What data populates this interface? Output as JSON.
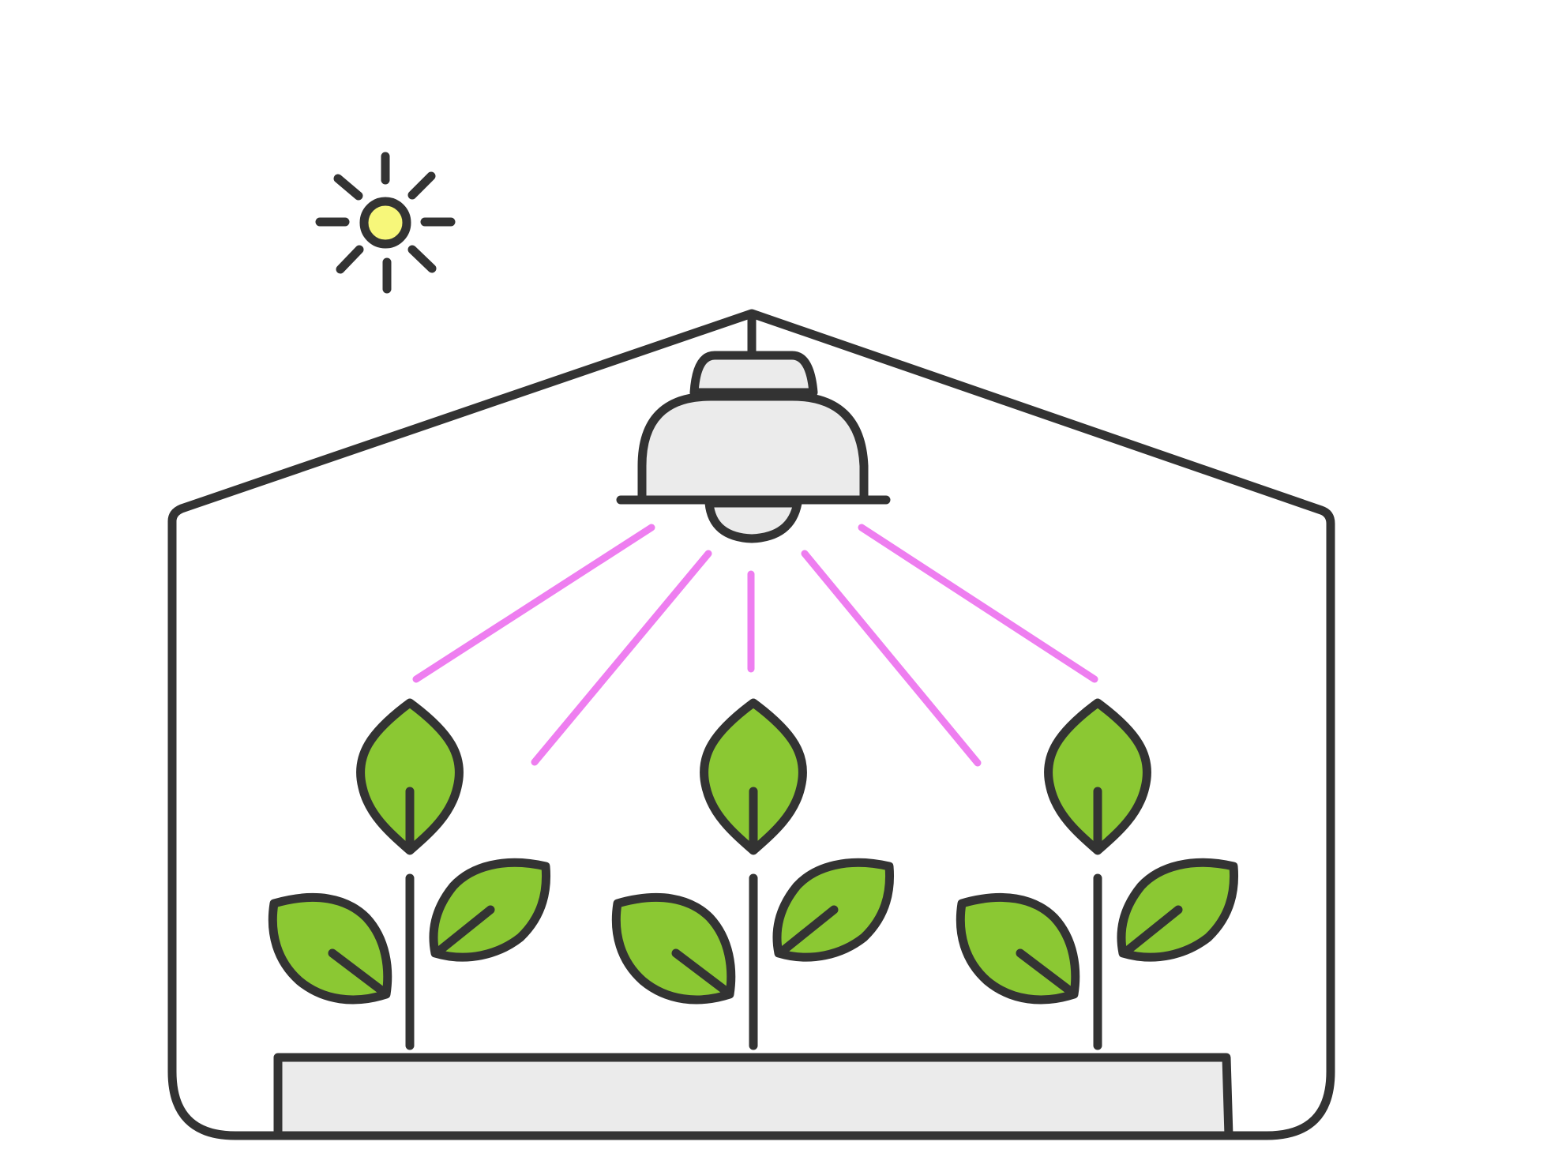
{
  "illustration": {
    "subject": "greenhouse-grow-light",
    "icons": [
      "sun-icon",
      "greenhouse-icon",
      "grow-lamp-icon",
      "light-ray-icon",
      "plant-icon",
      "planter-tray-icon"
    ],
    "plant_count": 3,
    "light_ray_count": 5,
    "colors": {
      "outline": "#333333",
      "background": "#ffffff",
      "sun_fill": "#f7f77a",
      "lamp_fill": "#ebebeb",
      "tray_fill": "#ebebeb",
      "leaf_fill": "#8bc833",
      "ray_color": "#ee7ef0"
    }
  }
}
